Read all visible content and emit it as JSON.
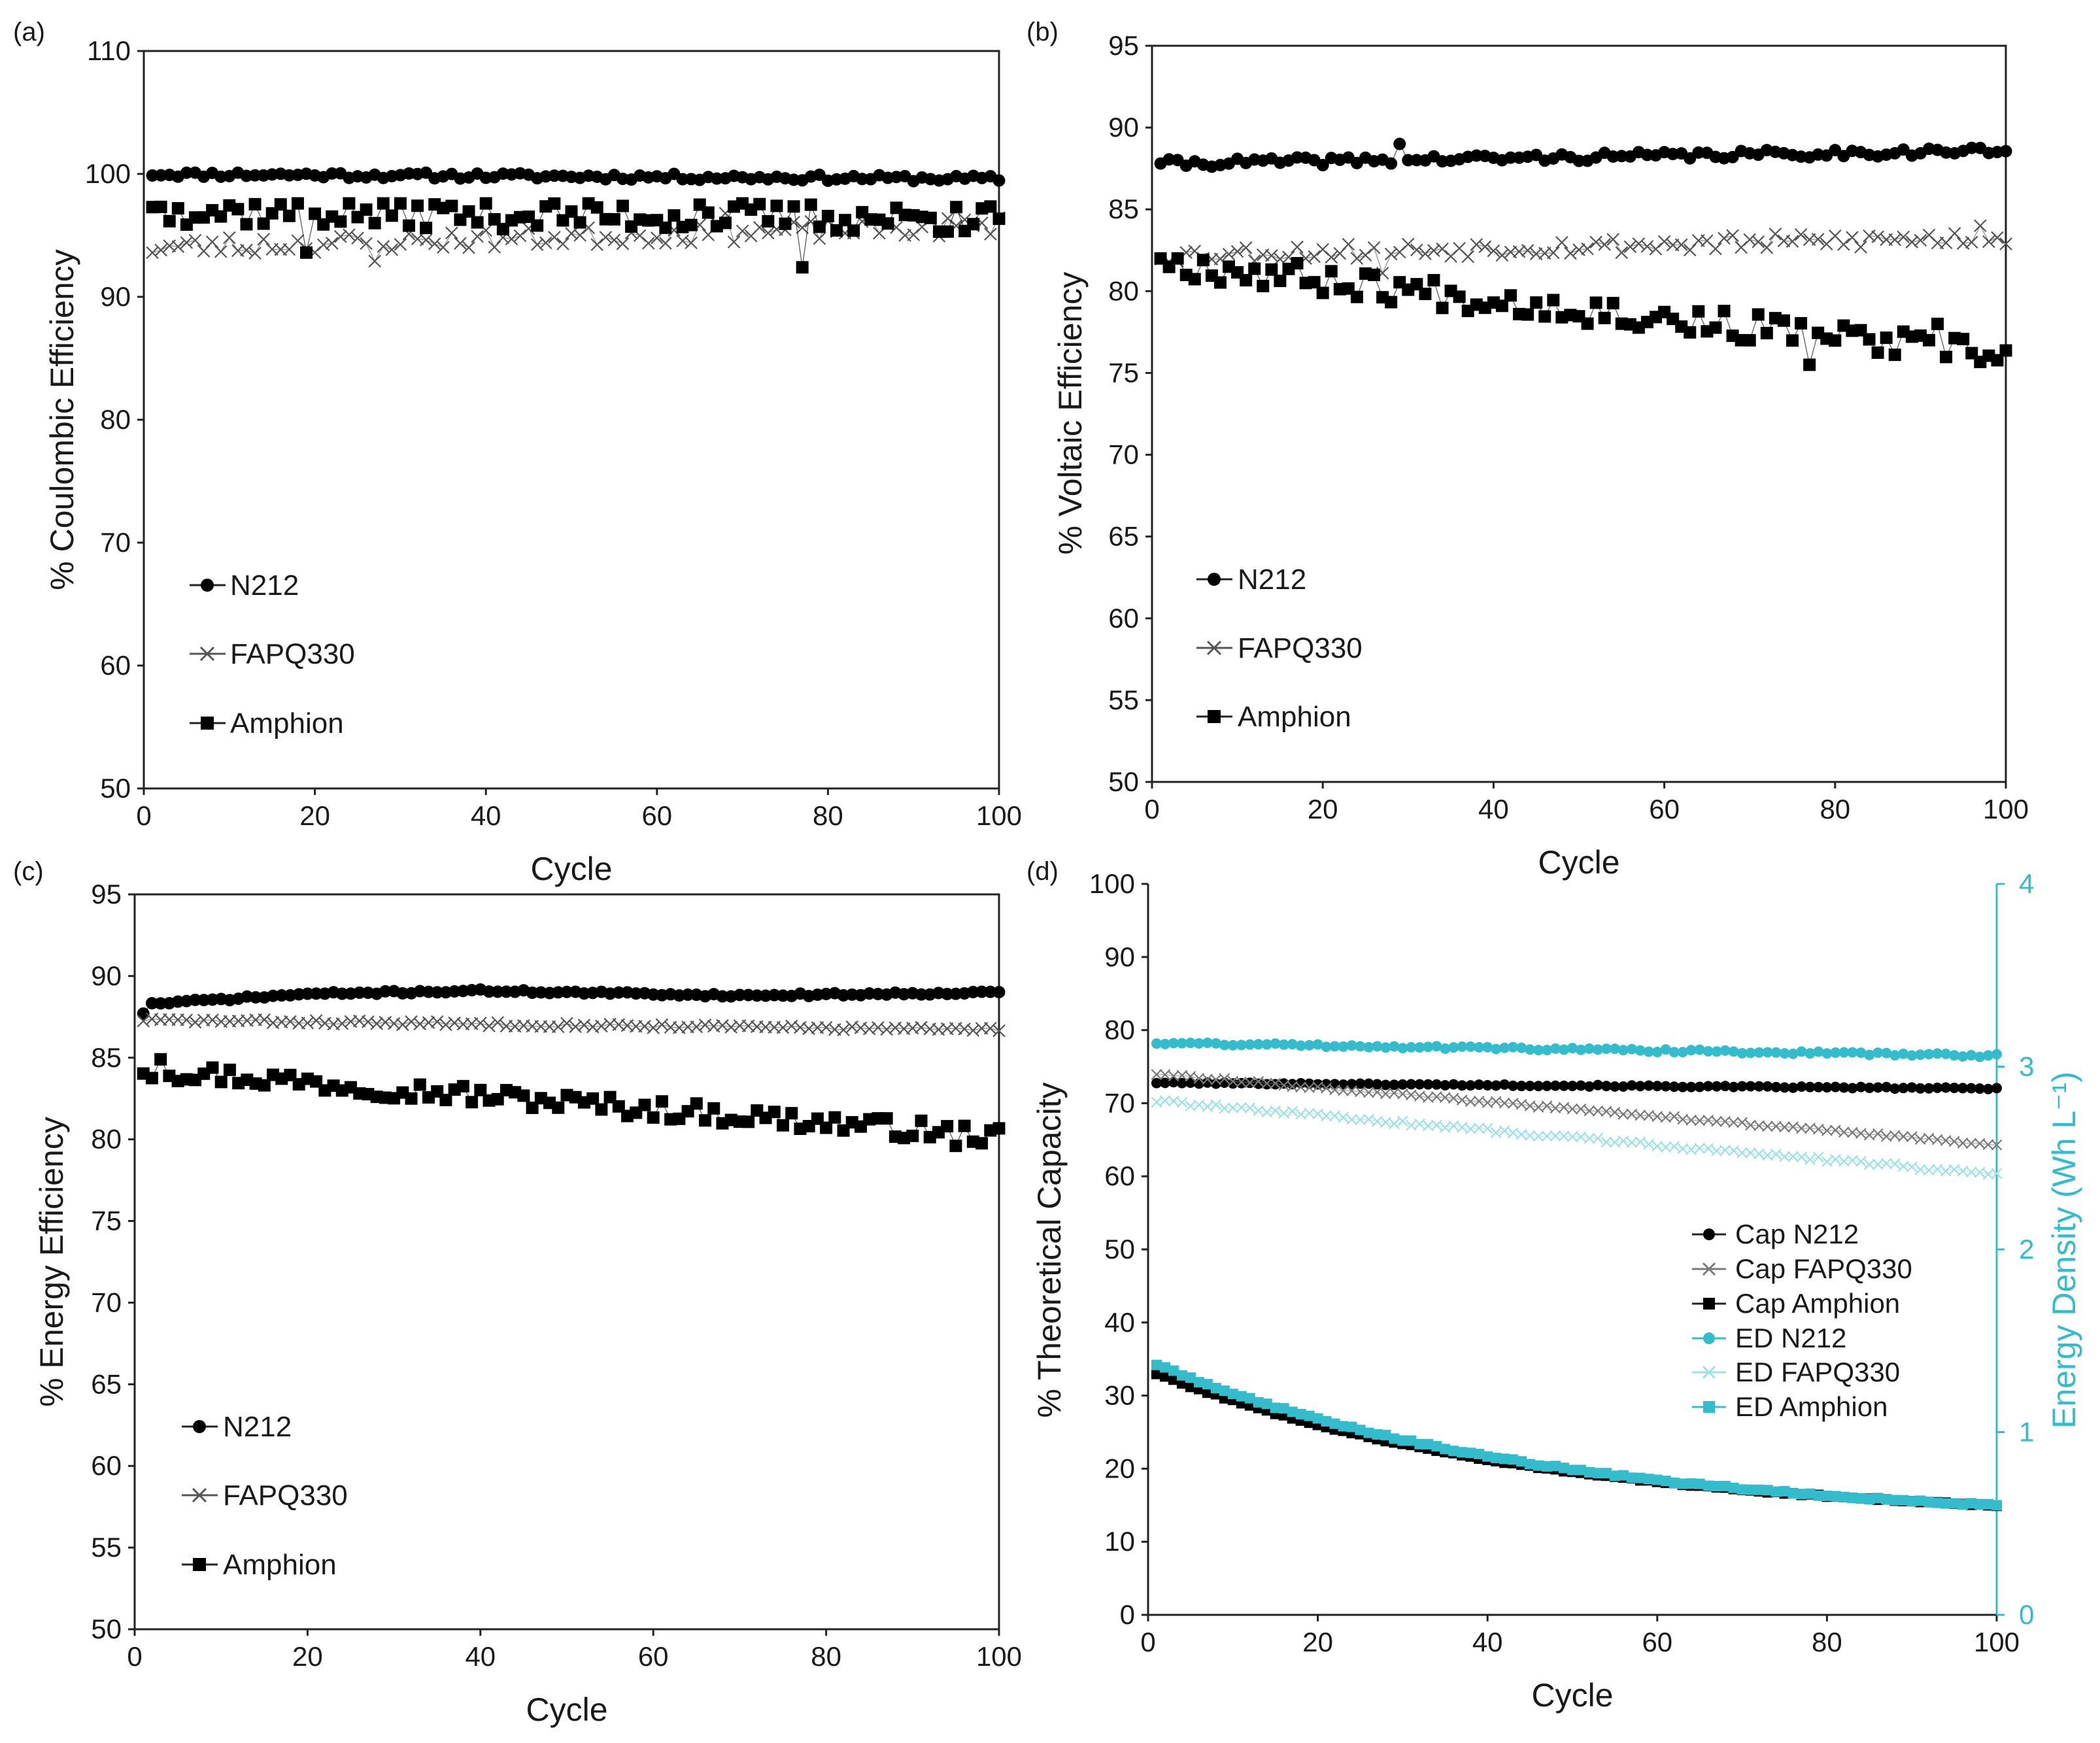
{
  "figure": {
    "panel_labels": [
      "(a)",
      "(b)",
      "(c)",
      "(d)"
    ]
  },
  "chart_data": [
    {
      "type": "scatter",
      "panel": "(a)",
      "title": "",
      "xlabel": "Cycle",
      "ylabel": "% Coulombic Efficiency",
      "xlim": [
        0,
        100
      ],
      "ylim": [
        50,
        110
      ],
      "x_ticks": [
        0,
        20,
        40,
        60,
        80,
        100
      ],
      "y_ticks": [
        50,
        60,
        70,
        80,
        90,
        100,
        110
      ],
      "legend_position": "left",
      "series": [
        {
          "name": "N212",
          "marker": "circle",
          "color": "#000000",
          "start": 100.0,
          "end": 99.6,
          "min": 99.4,
          "max": 100.1,
          "amp": 0.25,
          "seed": 11,
          "spikes": [
            [
              30,
              99.9
            ]
          ]
        },
        {
          "name": "FAPQ330",
          "marker": "x",
          "color": "#555555",
          "start": 94.0,
          "end": 95.8,
          "min": 92.8,
          "max": 97.0,
          "amp": 0.8,
          "seed": 23,
          "spikes": [
            [
              27,
              92.9
            ],
            [
              12,
              93.8
            ],
            [
              68,
              96.8
            ]
          ]
        },
        {
          "name": "Amphion",
          "marker": "square",
          "color": "#000000",
          "start": 97.0,
          "end": 96.3,
          "min": 92.3,
          "max": 97.6,
          "amp": 1.2,
          "seed": 37,
          "spikes": [
            [
              1,
              97.3
            ],
            [
              4,
              97.2
            ],
            [
              19,
              93.6
            ],
            [
              65,
              97.5
            ],
            [
              74,
              97.4
            ],
            [
              77,
              92.4
            ],
            [
              95,
              97.3
            ]
          ]
        }
      ]
    },
    {
      "type": "scatter",
      "panel": "(b)",
      "title": "",
      "xlabel": "Cycle",
      "ylabel": "% Voltaic Efficiency",
      "xlim": [
        0,
        100
      ],
      "ylim": [
        50,
        95
      ],
      "x_ticks": [
        0,
        20,
        40,
        60,
        80,
        100
      ],
      "y_ticks": [
        50,
        55,
        60,
        65,
        70,
        75,
        80,
        85,
        90,
        95
      ],
      "legend_position": "left",
      "series": [
        {
          "name": "N212",
          "marker": "circle",
          "color": "#000000",
          "start": 87.8,
          "end": 88.6,
          "min": 87.6,
          "max": 89.0,
          "amp": 0.25,
          "seed": 41,
          "spikes": [
            [
              1,
              87.8
            ],
            [
              29,
              89.0
            ]
          ]
        },
        {
          "name": "FAPQ330",
          "marker": "x",
          "color": "#555555",
          "start": 82.2,
          "end": 83.3,
          "min": 81.0,
          "max": 84.0,
          "amp": 0.5,
          "seed": 53,
          "spikes": [
            [
              27,
              81.1
            ],
            [
              97,
              84.0
            ]
          ]
        },
        {
          "name": "Amphion",
          "marker": "square",
          "color": "#000000",
          "start": 81.8,
          "end": 76.0,
          "min": 75.5,
          "max": 82.0,
          "amp": 0.9,
          "seed": 67,
          "spikes": [
            [
              1,
              82.0
            ],
            [
              77,
              75.5
            ],
            [
              92,
              78.0
            ]
          ]
        }
      ]
    },
    {
      "type": "scatter",
      "panel": "(c)",
      "title": "",
      "xlabel": "Cycle",
      "ylabel": "% Energy Efficiency",
      "xlim": [
        0,
        100
      ],
      "ylim": [
        50,
        95
      ],
      "x_ticks": [
        0,
        20,
        40,
        60,
        80,
        100
      ],
      "y_ticks": [
        50,
        55,
        60,
        65,
        70,
        75,
        80,
        85,
        90,
        95
      ],
      "legend_position": "left",
      "series": [
        {
          "name": "N212",
          "marker": "circle",
          "color": "#000000",
          "start": 88.3,
          "end": 89.0,
          "min": 87.7,
          "max": 89.2,
          "amp": 0.08,
          "seed": 71,
          "anchors": [
            [
              1,
              87.7
            ],
            [
              2,
              88.3
            ],
            [
              20,
              88.9
            ],
            [
              40,
              89.1
            ],
            [
              70,
              88.8
            ],
            [
              100,
              89.0
            ]
          ]
        },
        {
          "name": "FAPQ330",
          "marker": "x",
          "color": "#555555",
          "start": 87.3,
          "end": 86.7,
          "min": 86.5,
          "max": 87.5,
          "amp": 0.12,
          "seed": 83
        },
        {
          "name": "Amphion",
          "marker": "square",
          "color": "#000000",
          "start": 84.3,
          "end": 80.2,
          "min": 79.6,
          "max": 85.0,
          "amp": 0.6,
          "seed": 97,
          "spikes": [
            [
              3,
              84.9
            ],
            [
              76,
              81.6
            ],
            [
              95,
              79.6
            ]
          ]
        }
      ]
    },
    {
      "type": "scatter",
      "panel": "(d)",
      "title": "",
      "xlabel": "Cycle",
      "ylabel": "% Theoretical Capacity",
      "y2label": "Energy Density (Wh L⁻¹)",
      "xlim": [
        0,
        100
      ],
      "ylim": [
        0,
        100
      ],
      "y2lim": [
        0,
        4
      ],
      "x_ticks": [
        0,
        20,
        40,
        60,
        80,
        100
      ],
      "y_ticks": [
        0,
        10,
        20,
        30,
        40,
        50,
        60,
        70,
        80,
        90,
        100
      ],
      "y2_ticks": [
        0,
        1,
        2,
        3,
        4
      ],
      "legend_position": "center-right",
      "series": [
        {
          "name": "Cap N212",
          "marker": "circle",
          "color": "#000000",
          "axis": "left",
          "start": 72.8,
          "end": 72.0,
          "min": 71.8,
          "max": 73.0,
          "amp": 0.1,
          "seed": 101
        },
        {
          "name": "Cap FAPQ330",
          "marker": "x",
          "color": "#7a7a7a",
          "axis": "left",
          "start": 74.0,
          "end": 64.3,
          "min": 64.0,
          "max": 74.5,
          "amp": 0.15,
          "seed": 113
        },
        {
          "name": "Cap Amphion",
          "marker": "square",
          "color": "#000000",
          "axis": "left",
          "start": 33.0,
          "end": 15.0,
          "min": 14.5,
          "max": 33.5,
          "amp": 0.1,
          "seed": 127,
          "curve": "decay"
        },
        {
          "name": "ED N212",
          "marker": "circle",
          "color": "#33BCCB",
          "axis": "right",
          "start": 3.13,
          "end": 3.06,
          "min": 3.02,
          "max": 3.15,
          "amp": 0.008,
          "seed": 131
        },
        {
          "name": "ED FAPQ330",
          "marker": "x",
          "color": "#9fe0e8",
          "axis": "right",
          "start": 2.81,
          "end": 2.41,
          "min": 2.4,
          "max": 2.83,
          "amp": 0.01,
          "seed": 139
        },
        {
          "name": "ED Amphion",
          "marker": "square",
          "color": "#33BCCB",
          "axis": "right",
          "start": 1.37,
          "end": 0.6,
          "min": 0.58,
          "max": 1.39,
          "amp": 0.006,
          "seed": 149,
          "curve": "decay"
        }
      ]
    }
  ]
}
